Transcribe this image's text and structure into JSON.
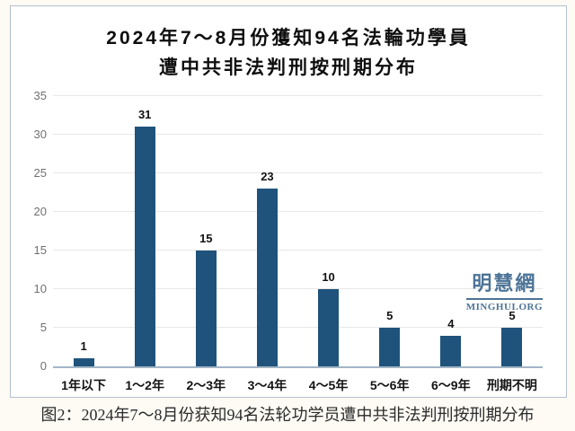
{
  "page": {
    "background": "#FDFBF4",
    "panel_border": "#B3C1CE",
    "panel_background": "#FFFFFF"
  },
  "chart_data": {
    "type": "bar",
    "title": "2024年7～8月份獲知94名法輪功學員遭中共非法判刑按刑期分布",
    "title_lines": [
      "2024年7～8月份獲知94名法輪功學員",
      "遭中共非法判刑按刑期分布"
    ],
    "categories": [
      "1年以下",
      "1～2年",
      "2～3年",
      "3～4年",
      "4～5年",
      "5～6年",
      "6～9年",
      "刑期不明"
    ],
    "values": [
      1,
      31,
      15,
      23,
      10,
      5,
      4,
      5
    ],
    "xlabel": "",
    "ylabel": "",
    "ylim": [
      0,
      35
    ],
    "yticks": [
      0,
      5,
      10,
      15,
      20,
      25,
      30,
      35
    ],
    "grid": true,
    "legend": false,
    "data_labels": true,
    "bar_color": "#1F537C",
    "gridline_color": "#E8E8E8",
    "baseline_color": "#A3B5C6",
    "tick_label_color": "#707070"
  },
  "watermark": {
    "chinese": "明慧網",
    "english": "MINGHUI.ORG",
    "color": "#4C7396"
  },
  "caption": "图2：2024年7～8月份获知94名法轮功学员遭中共非法判刑按刑期分布"
}
